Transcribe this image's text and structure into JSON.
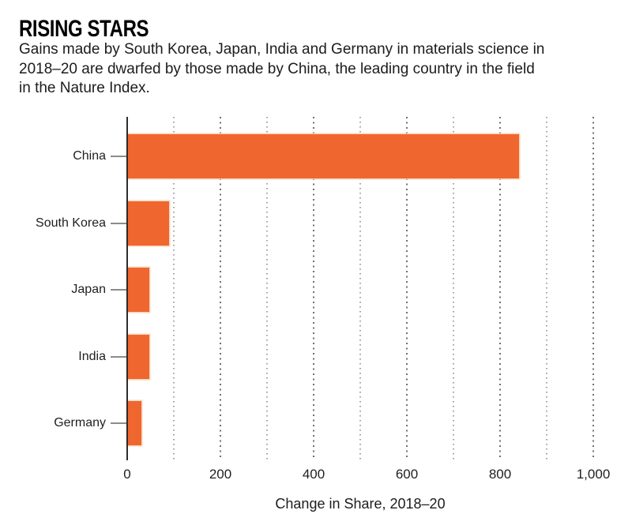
{
  "header": {
    "title": "RISING STARS",
    "subtitle_lines": [
      "Gains made by South Korea, Japan, India and Germany in materials science in",
      "2018–20 are dwarfed by those made by China, the leading country in the field",
      "in the Nature Index."
    ]
  },
  "chart_data": {
    "type": "bar",
    "orientation": "horizontal",
    "title": "RISING STARS",
    "categories": [
      "China",
      "South Korea",
      "Japan",
      "India",
      "Germany"
    ],
    "values": [
      840,
      90,
      47,
      48,
      30
    ],
    "xlabel": "Change in Share, 2018–20",
    "ylabel": "",
    "xlim": [
      0,
      1000
    ],
    "x_ticks": [
      0,
      200,
      400,
      600,
      800,
      1000
    ],
    "x_tick_labels": [
      "0",
      "200",
      "400",
      "600",
      "800",
      "1,000"
    ],
    "gridlines": {
      "interval": 100,
      "style": "dotted",
      "major_interval": 200
    },
    "legend": "none"
  },
  "colors": {
    "bar_fill": "#F0662F",
    "bar_halo": "#FAD0B2",
    "axis_line": "#2d2d2d",
    "label_tick": "#8c8c8c",
    "grid_minor": "#a2a2a2",
    "grid_major": "#6f6f6f",
    "text": "#1c1c1c",
    "background": "#ffffff"
  }
}
